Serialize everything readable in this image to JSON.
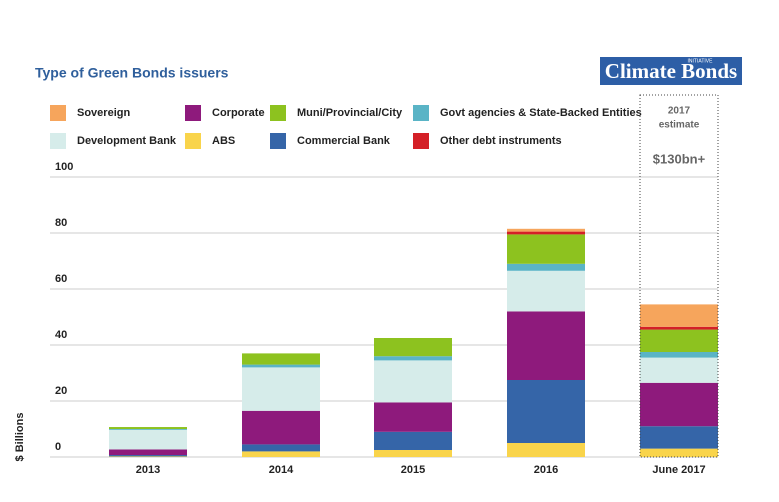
{
  "logo": {
    "text": "Climate Bonds",
    "tag": "INITIATIVE"
  },
  "chart_data": {
    "type": "stacked_bar",
    "title": "Type of Green Bonds issuers",
    "y_label": "$ Billions",
    "categories": [
      "2013",
      "2014",
      "2015",
      "2016",
      "June 2017"
    ],
    "series": [
      {
        "name": "ABS",
        "color": "#f9d44b",
        "values": [
          0.2,
          2,
          2.5,
          5,
          3
        ]
      },
      {
        "name": "Commercial Bank",
        "color": "#3565a8",
        "values": [
          0.5,
          2.5,
          6.5,
          22.5,
          8
        ]
      },
      {
        "name": "Corporate",
        "color": "#8e1a7c",
        "values": [
          2,
          12,
          10.5,
          24.5,
          15.5
        ]
      },
      {
        "name": "Development Bank",
        "color": "#d6ecea",
        "values": [
          7,
          15.5,
          15,
          14.5,
          9
        ]
      },
      {
        "name": "Govt agencies & State-Backed Entities",
        "color": "#5ab4c6",
        "values": [
          0.3,
          1,
          1.5,
          2.5,
          2
        ]
      },
      {
        "name": "Muni/Provincial/City",
        "color": "#8dc21f",
        "values": [
          0.7,
          4,
          6.5,
          10.5,
          8
        ]
      },
      {
        "name": "Other debt instruments",
        "color": "#d42027",
        "values": [
          0,
          0,
          0,
          1,
          1
        ]
      },
      {
        "name": "Sovereign",
        "color": "#f6a55c",
        "values": [
          0,
          0,
          0,
          1,
          8
        ]
      }
    ],
    "ylim": [
      0,
      100
    ],
    "yticks": [
      0,
      20,
      40,
      60,
      80,
      100
    ],
    "grid": true,
    "annotation": [
      "2017",
      "estimate"
    ],
    "annotation_value": "$130bn+"
  }
}
